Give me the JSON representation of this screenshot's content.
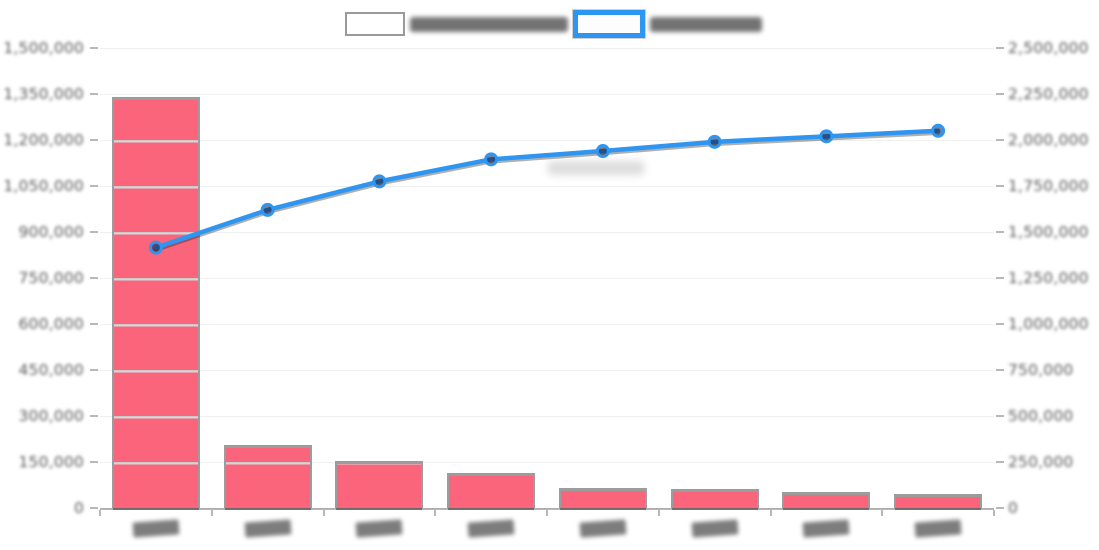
{
  "meta": {
    "text_legibility": "all text in the source screenshot is blurred/pixelated and illegible; numeric tick labels below are inferred from axis geometry and label widths",
    "background_color": "#ffffff"
  },
  "colors": {
    "bar_fill": "#fb657c",
    "bar_border": "#9c9c9c",
    "line": "#2e96f0",
    "marker_fill": "rgba(25,25,55,0.55)",
    "tick_text": "#5a5a5a",
    "blurred_text_blob": "#686868"
  },
  "legend": {
    "items": [
      {
        "series": "bars",
        "swatch_color": "#fb657c",
        "label_illegible": true,
        "label_placeholder": "████████"
      },
      {
        "series": "cumulative-line",
        "swatch_color": "#2e96f0",
        "label_illegible": true,
        "label_placeholder": "██████"
      }
    ]
  },
  "chart_data": {
    "type": "bar",
    "subtype": "pareto-combo (bars + cumulative line, dual axis)",
    "grid": "faint horizontal gridlines, visible as stripes across bars",
    "legend_position": "top-center",
    "categories_illegible": true,
    "categories": [
      "████",
      "████",
      "████",
      "████",
      "████",
      "████",
      "████",
      "████"
    ],
    "series": [
      {
        "name": "bar-series (label illegible)",
        "type": "bar",
        "axis": "left",
        "color": "#fb657c",
        "values": [
          1340000,
          205000,
          152000,
          115000,
          66000,
          61000,
          53000,
          45000
        ]
      },
      {
        "name": "cumulative-line-series (label illegible)",
        "type": "line",
        "axis": "right",
        "color": "#2e96f0",
        "values": [
          1415000,
          1620000,
          1775000,
          1895000,
          1940000,
          1990000,
          2020000,
          2050000
        ]
      }
    ],
    "left_axis": {
      "min": 0,
      "max": 1500000,
      "step": 150000,
      "tick_labels": [
        "1,500,000",
        "1,350,000",
        "1,200,000",
        "1,050,000",
        "900,000",
        "750,000",
        "600,000",
        "450,000",
        "300,000",
        "150,000",
        "0"
      ]
    },
    "right_axis": {
      "min": 0,
      "max": 2500000,
      "step": 250000,
      "tick_labels": [
        "2,500,000",
        "2,250,000",
        "2,000,000",
        "1,750,000",
        "1,500,000",
        "1,250,000",
        "1,000,000",
        "750,000",
        "500,000",
        "250,000",
        "0"
      ]
    }
  }
}
